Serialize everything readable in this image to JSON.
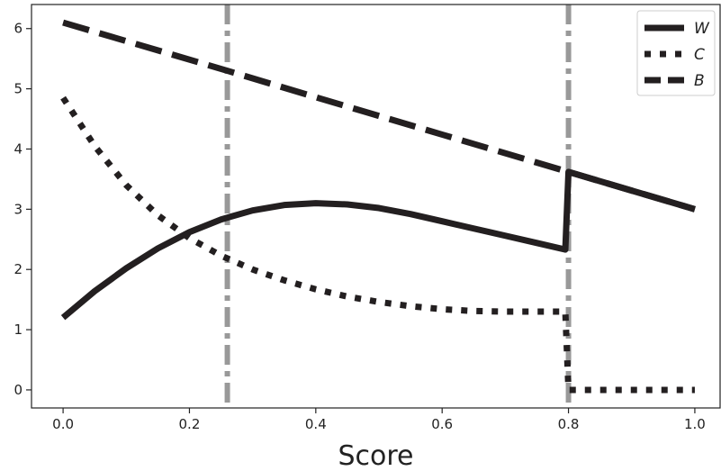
{
  "chart_data": {
    "type": "line",
    "title": "",
    "xlabel": "Score",
    "ylabel": "",
    "xlim": [
      -0.05,
      1.04
    ],
    "ylim": [
      -0.3,
      6.4
    ],
    "grid": false,
    "legend_position": "top-right",
    "x_ticks": [
      0.0,
      0.2,
      0.4,
      0.6,
      0.8,
      1.0
    ],
    "x_tick_labels": [
      "0.0",
      "0.2",
      "0.4",
      "0.6",
      "0.8",
      "1.0"
    ],
    "y_ticks": [
      0,
      1,
      2,
      3,
      4,
      5,
      6
    ],
    "y_tick_labels": [
      "0",
      "1",
      "2",
      "3",
      "4",
      "5",
      "6"
    ],
    "vertical_lines": [
      0.26,
      0.8
    ],
    "series": [
      {
        "name": "W",
        "style": "solid",
        "color": "#231f20",
        "points": [
          [
            0.0,
            1.2
          ],
          [
            0.05,
            1.64
          ],
          [
            0.1,
            2.02
          ],
          [
            0.15,
            2.35
          ],
          [
            0.2,
            2.62
          ],
          [
            0.25,
            2.83
          ],
          [
            0.3,
            2.98
          ],
          [
            0.35,
            3.07
          ],
          [
            0.4,
            3.1
          ],
          [
            0.45,
            3.08
          ],
          [
            0.5,
            3.02
          ],
          [
            0.55,
            2.92
          ],
          [
            0.6,
            2.8
          ],
          [
            0.65,
            2.68
          ],
          [
            0.7,
            2.56
          ],
          [
            0.75,
            2.44
          ],
          [
            0.795,
            2.33
          ],
          [
            0.8,
            3.62
          ],
          [
            0.9,
            3.31
          ],
          [
            1.0,
            3.0
          ]
        ]
      },
      {
        "name": "C",
        "style": "dotted",
        "color": "#231f20",
        "points": [
          [
            0.0,
            4.85
          ],
          [
            0.05,
            4.05
          ],
          [
            0.1,
            3.4
          ],
          [
            0.15,
            2.9
          ],
          [
            0.2,
            2.52
          ],
          [
            0.25,
            2.23
          ],
          [
            0.3,
            2.0
          ],
          [
            0.35,
            1.82
          ],
          [
            0.4,
            1.67
          ],
          [
            0.45,
            1.55
          ],
          [
            0.5,
            1.46
          ],
          [
            0.55,
            1.39
          ],
          [
            0.6,
            1.34
          ],
          [
            0.65,
            1.31
          ],
          [
            0.7,
            1.3
          ],
          [
            0.75,
            1.3
          ],
          [
            0.795,
            1.3
          ],
          [
            0.8,
            0.0
          ],
          [
            0.9,
            0.0
          ],
          [
            1.0,
            0.0
          ]
        ]
      },
      {
        "name": "B",
        "style": "dashed",
        "color": "#231f20",
        "points": [
          [
            0.0,
            6.1
          ],
          [
            0.26,
            5.3
          ],
          [
            0.4,
            4.86
          ],
          [
            0.6,
            4.24
          ],
          [
            0.8,
            3.62
          ],
          [
            0.9,
            3.31
          ],
          [
            1.0,
            3.0
          ]
        ]
      }
    ]
  },
  "colors": {
    "line": "#231f20",
    "vline": "#999999",
    "axis": "#222222"
  }
}
